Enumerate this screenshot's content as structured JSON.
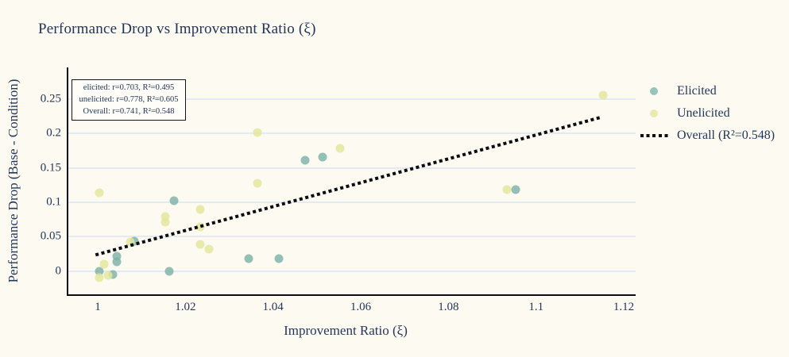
{
  "title": "Performance Drop vs Improvement Ratio (ξ)",
  "stats_box": {
    "lines": [
      "elicited: r=0.703, R²=0.495",
      "unelicited: r=0.778, R²=0.605",
      "Overall: r=0.741, R²=0.548"
    ]
  },
  "legend": {
    "items": [
      {
        "label": "Elicited",
        "marker": "dot",
        "color": "#96c5ba"
      },
      {
        "label": "Unelicited",
        "marker": "dot",
        "color": "#e9eaac"
      },
      {
        "label": "Overall (R²=0.548)",
        "marker": "dashed-line",
        "color": "#0b0b12"
      }
    ]
  },
  "colors": {
    "background": "#fdfaf2",
    "text": "#22375a",
    "gridline": "#e4eaf3",
    "axis_spine": "#0d0d15",
    "elicited_fill": "rgba(124,178,166,0.82)",
    "unelicited_fill": "rgba(228,230,157,0.85)",
    "trend": "#0b0b12"
  },
  "chart_data": {
    "type": "scatter",
    "title": "Performance Drop vs Improvement Ratio (ξ)",
    "xlabel": "Improvement Ratio (ξ)",
    "ylabel": "Performance Drop (Base - Condition)",
    "xlim": [
      0.99293,
      1.12235
    ],
    "ylim": [
      -0.0338,
      0.29615
    ],
    "grid": "horizontal",
    "legend_position": "right",
    "x_ticks": [
      {
        "value": 1.0,
        "label": "1"
      },
      {
        "value": 1.02,
        "label": "1.02"
      },
      {
        "value": 1.04,
        "label": "1.04"
      },
      {
        "value": 1.06,
        "label": "1.06"
      },
      {
        "value": 1.08,
        "label": "1.08"
      },
      {
        "value": 1.1,
        "label": "1.1"
      },
      {
        "value": 1.12,
        "label": "1.12"
      }
    ],
    "y_ticks": [
      {
        "value": 0,
        "label": "0"
      },
      {
        "value": 0.05,
        "label": "0.05"
      },
      {
        "value": 0.1,
        "label": "0.1"
      },
      {
        "value": 0.15,
        "label": "0.15"
      },
      {
        "value": 0.2,
        "label": "0.2"
      },
      {
        "value": 0.25,
        "label": "0.25"
      }
    ],
    "series": [
      {
        "name": "Elicited",
        "points": [
          [
            1.0,
            0.0
          ],
          [
            1.003,
            -0.005
          ],
          [
            1.004,
            0.013
          ],
          [
            1.004,
            0.021
          ],
          [
            1.008,
            0.044
          ],
          [
            1.016,
            0.0
          ],
          [
            1.017,
            0.102
          ],
          [
            1.034,
            0.018
          ],
          [
            1.041,
            0.018
          ],
          [
            1.047,
            0.161
          ],
          [
            1.051,
            0.166
          ],
          [
            1.095,
            0.118
          ]
        ]
      },
      {
        "name": "Unelicited",
        "points": [
          [
            1.0,
            -0.01
          ],
          [
            1.0,
            0.114
          ],
          [
            1.001,
            0.01
          ],
          [
            1.002,
            -0.006
          ],
          [
            1.007,
            0.042
          ],
          [
            1.015,
            0.071
          ],
          [
            1.015,
            0.079
          ],
          [
            1.023,
            0.039
          ],
          [
            1.023,
            0.064
          ],
          [
            1.023,
            0.09
          ],
          [
            1.025,
            0.032
          ],
          [
            1.036,
            0.128
          ],
          [
            1.036,
            0.202
          ],
          [
            1.055,
            0.178
          ],
          [
            1.093,
            0.118
          ],
          [
            1.115,
            0.256
          ]
        ]
      }
    ],
    "trend_line": {
      "name": "Overall (R²=0.548)",
      "style": "dotted",
      "x": [
        0.9995,
        1.1147
      ],
      "y": [
        0.0235,
        0.2235
      ],
      "r": 0.741,
      "r_squared": 0.548
    },
    "correlations": {
      "elicited": {
        "r": 0.703,
        "r_squared": 0.495
      },
      "unelicited": {
        "r": 0.778,
        "r_squared": 0.605
      },
      "overall": {
        "r": 0.741,
        "r_squared": 0.548
      }
    }
  }
}
